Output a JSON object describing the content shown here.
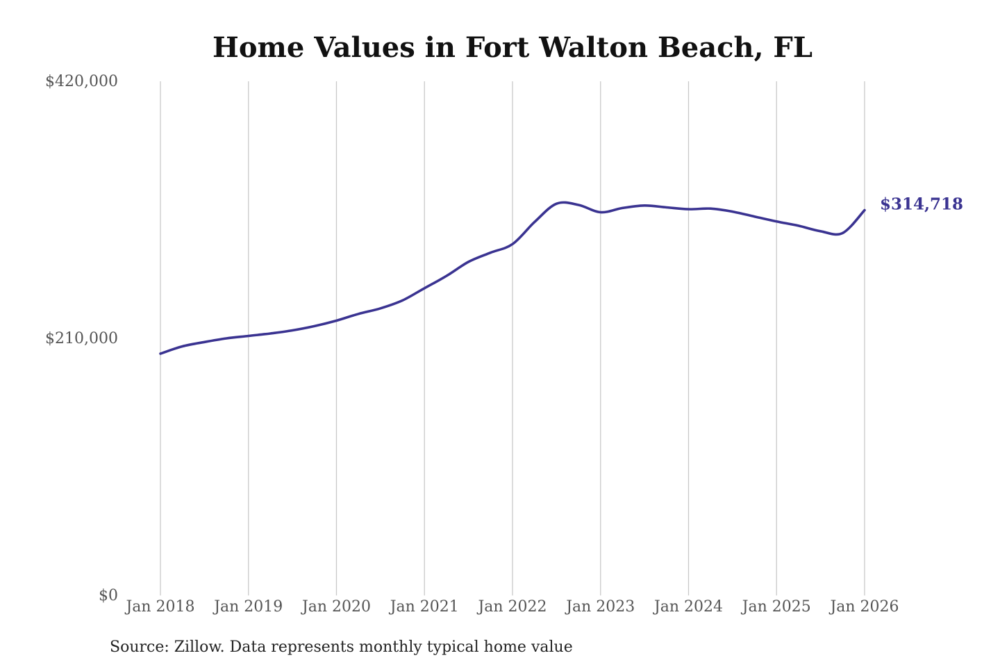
{
  "chart_data": {
    "type": "line",
    "title": "Home Values in Fort Walton Beach, FL",
    "xlabel": "",
    "ylabel": "",
    "ylim": [
      0,
      420000
    ],
    "y_ticks": [
      "$0",
      "$210,000",
      "$420,000"
    ],
    "y_tick_values": [
      0,
      210000,
      420000
    ],
    "x_tick_labels": [
      "Jan 2018",
      "Jan 2019",
      "Jan 2020",
      "Jan 2021",
      "Jan 2022",
      "Jan 2023",
      "Jan 2024",
      "Jan 2025",
      "Jan 2026"
    ],
    "x_tick_dates": [
      "2018-01",
      "2019-01",
      "2020-01",
      "2021-01",
      "2022-01",
      "2023-01",
      "2024-01",
      "2025-01",
      "2026-01"
    ],
    "grid": "vertical",
    "series": [
      {
        "color": "#3a3391",
        "x": [
          "2018-01",
          "2018-04",
          "2018-07",
          "2018-10",
          "2019-01",
          "2019-04",
          "2019-07",
          "2019-10",
          "2020-01",
          "2020-04",
          "2020-07",
          "2020-10",
          "2021-01",
          "2021-04",
          "2021-07",
          "2021-10",
          "2022-01",
          "2022-04",
          "2022-07",
          "2022-10",
          "2023-01",
          "2023-04",
          "2023-07",
          "2023-10",
          "2024-01",
          "2024-04",
          "2024-07",
          "2024-10",
          "2025-01",
          "2025-04",
          "2025-07",
          "2025-10",
          "2026-01"
        ],
        "values": [
          197500,
          203500,
          207000,
          210000,
          212000,
          214000,
          216500,
          220000,
          224500,
          230000,
          234500,
          241000,
          251000,
          261000,
          272500,
          280000,
          287000,
          305000,
          320000,
          319000,
          313000,
          316500,
          318500,
          317000,
          315500,
          316000,
          313500,
          309500,
          305500,
          302000,
          297500,
          296000,
          314718
        ]
      }
    ],
    "end_label": "$314,718",
    "source": "Source: Zillow. Data represents monthly typical home value"
  }
}
